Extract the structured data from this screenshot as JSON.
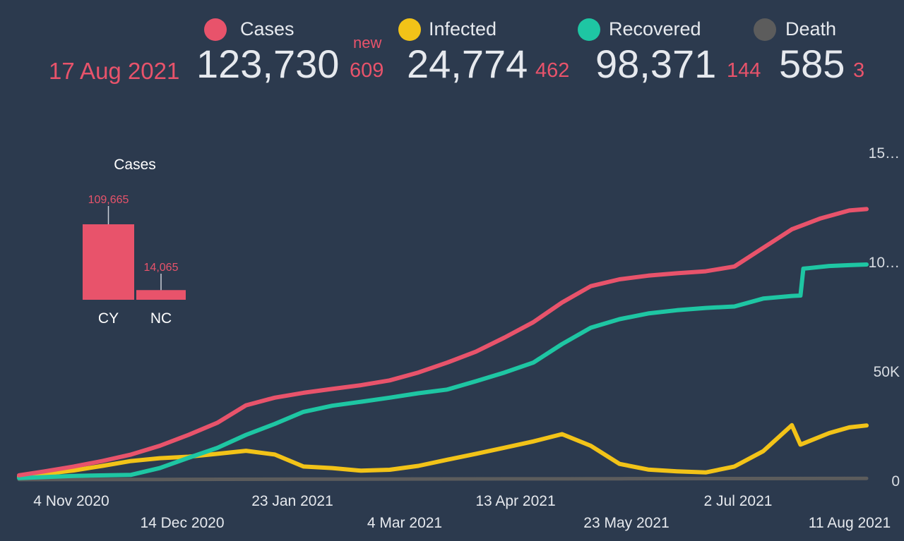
{
  "header": {
    "date": "17 Aug 2021",
    "new_label": "new",
    "stats": [
      {
        "key": "cases",
        "label": "Cases",
        "color": "#e8536b",
        "value": "123,730",
        "new": "609"
      },
      {
        "key": "infected",
        "label": "Infected",
        "color": "#f2c318",
        "value": "24,774",
        "new": "462"
      },
      {
        "key": "recovered",
        "label": "Recovered",
        "color": "#1ec6a3",
        "value": "98,371",
        "new": "144"
      },
      {
        "key": "death",
        "label": "Death",
        "color": "#5c5c5c",
        "value": "585",
        "new": "3"
      }
    ]
  },
  "chart_data": [
    {
      "type": "bar",
      "title": "Cases",
      "categories": [
        "CY",
        "NC"
      ],
      "values": [
        109665,
        14065
      ],
      "value_labels": [
        "109,665",
        "14,065"
      ],
      "color": "#e8536b"
    },
    {
      "type": "line",
      "x_ticks": [
        "4 Nov 2020",
        "14 Dec 2020",
        "23 Jan 2021",
        "4 Mar 2021",
        "13 Apr 2021",
        "23 May 2021",
        "2 Jul 2021",
        "11 Aug 2021"
      ],
      "y_ticks": [
        "0",
        "50K",
        "10…",
        "15…"
      ],
      "y_tick_values": [
        0,
        50000,
        100000,
        150000
      ],
      "ylim": [
        0,
        150000
      ],
      "xlim": [
        "2020-10-26",
        "2021-08-17"
      ],
      "grid": false,
      "series": [
        {
          "key": "cases",
          "color": "#e8536b",
          "points": [
            [
              "2020-10-26",
              2000
            ],
            [
              "2020-11-04",
              3800
            ],
            [
              "2020-11-14",
              6000
            ],
            [
              "2020-11-24",
              8500
            ],
            [
              "2020-12-04",
              11500
            ],
            [
              "2020-12-14",
              15500
            ],
            [
              "2020-12-24",
              20500
            ],
            [
              "2021-01-03",
              26000
            ],
            [
              "2021-01-13",
              34000
            ],
            [
              "2021-01-23",
              37500
            ],
            [
              "2021-02-02",
              39700
            ],
            [
              "2021-02-12",
              41500
            ],
            [
              "2021-02-22",
              43200
            ],
            [
              "2021-03-04",
              45400
            ],
            [
              "2021-03-14",
              49000
            ],
            [
              "2021-03-24",
              53500
            ],
            [
              "2021-04-03",
              58500
            ],
            [
              "2021-04-13",
              65000
            ],
            [
              "2021-04-23",
              72000
            ],
            [
              "2021-05-03",
              81000
            ],
            [
              "2021-05-13",
              88500
            ],
            [
              "2021-05-23",
              91600
            ],
            [
              "2021-06-02",
              93300
            ],
            [
              "2021-06-12",
              94400
            ],
            [
              "2021-06-22",
              95300
            ],
            [
              "2021-07-02",
              97500
            ],
            [
              "2021-07-12",
              106000
            ],
            [
              "2021-07-22",
              114500
            ],
            [
              "2021-08-01",
              119500
            ],
            [
              "2021-08-11",
              123100
            ],
            [
              "2021-08-17",
              123730
            ]
          ]
        },
        {
          "key": "recovered",
          "color": "#1ec6a3",
          "points": [
            [
              "2020-10-26",
              700
            ],
            [
              "2020-11-14",
              1700
            ],
            [
              "2020-12-04",
              2200
            ],
            [
              "2020-12-14",
              5300
            ],
            [
              "2020-12-24",
              10000
            ],
            [
              "2021-01-03",
              14500
            ],
            [
              "2021-01-13",
              20500
            ],
            [
              "2021-01-23",
              25500
            ],
            [
              "2021-02-02",
              31000
            ],
            [
              "2021-02-12",
              33800
            ],
            [
              "2021-02-22",
              35600
            ],
            [
              "2021-03-04",
              37500
            ],
            [
              "2021-03-14",
              39500
            ],
            [
              "2021-03-24",
              41200
            ],
            [
              "2021-04-03",
              45000
            ],
            [
              "2021-04-13",
              49000
            ],
            [
              "2021-04-23",
              53500
            ],
            [
              "2021-05-03",
              62000
            ],
            [
              "2021-05-13",
              69500
            ],
            [
              "2021-05-23",
              73400
            ],
            [
              "2021-06-02",
              76000
            ],
            [
              "2021-06-12",
              77500
            ],
            [
              "2021-06-22",
              78500
            ],
            [
              "2021-07-02",
              79200
            ],
            [
              "2021-07-12",
              82800
            ],
            [
              "2021-07-22",
              84000
            ],
            [
              "2021-07-25",
              84200
            ],
            [
              "2021-07-26",
              96500
            ],
            [
              "2021-08-04",
              97700
            ],
            [
              "2021-08-11",
              98100
            ],
            [
              "2021-08-17",
              98371
            ]
          ]
        },
        {
          "key": "infected",
          "color": "#f2c318",
          "points": [
            [
              "2020-10-26",
              1300
            ],
            [
              "2020-11-14",
              4200
            ],
            [
              "2020-11-24",
              6300
            ],
            [
              "2020-12-04",
              8500
            ],
            [
              "2020-12-14",
              9800
            ],
            [
              "2020-12-24",
              10500
            ],
            [
              "2021-01-03",
              11800
            ],
            [
              "2021-01-13",
              13200
            ],
            [
              "2021-01-23",
              11500
            ],
            [
              "2021-02-02",
              6000
            ],
            [
              "2021-02-12",
              5300
            ],
            [
              "2021-02-22",
              4100
            ],
            [
              "2021-03-04",
              4500
            ],
            [
              "2021-03-14",
              6300
            ],
            [
              "2021-03-24",
              9100
            ],
            [
              "2021-04-03",
              11800
            ],
            [
              "2021-04-13",
              14600
            ],
            [
              "2021-04-23",
              17500
            ],
            [
              "2021-05-03",
              20800
            ],
            [
              "2021-05-13",
              15500
            ],
            [
              "2021-05-23",
              7200
            ],
            [
              "2021-06-02",
              4600
            ],
            [
              "2021-06-12",
              3800
            ],
            [
              "2021-06-22",
              3300
            ],
            [
              "2021-07-02",
              6000
            ],
            [
              "2021-07-12",
              13000
            ],
            [
              "2021-07-22",
              24900
            ],
            [
              "2021-07-25",
              16000
            ],
            [
              "2021-08-04",
              21300
            ],
            [
              "2021-08-11",
              23900
            ],
            [
              "2021-08-17",
              24774
            ]
          ]
        },
        {
          "key": "death",
          "color": "#5c5c5c",
          "points": [
            [
              "2020-10-26",
              30
            ],
            [
              "2020-12-14",
              90
            ],
            [
              "2021-02-02",
              230
            ],
            [
              "2021-04-13",
              340
            ],
            [
              "2021-05-23",
              430
            ],
            [
              "2021-07-02",
              480
            ],
            [
              "2021-08-17",
              585
            ]
          ]
        }
      ]
    }
  ]
}
